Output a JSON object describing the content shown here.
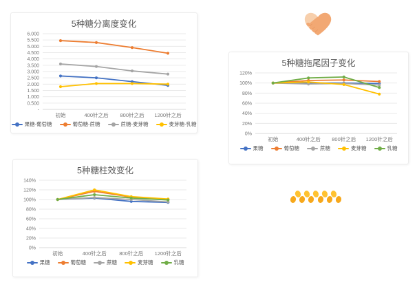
{
  "page": {
    "background": "#FFFFFF"
  },
  "colors": {
    "blue": "#4472C4",
    "orange": "#ED7D31",
    "gray": "#A5A5A5",
    "yellow": "#FFC000",
    "green": "#70AD47",
    "title_text": "#595959",
    "axis_text": "#737373",
    "gridline": "#EAEAEA",
    "axis_line": "#D9D9D9",
    "card_border": "#ECECEC"
  },
  "decorations": {
    "heart_hands": {
      "label": "handshake-heart",
      "light_hand": "#F7CFAC",
      "dark_hand": "#F2A873",
      "outline": "#E8965F"
    },
    "honeycomb": {
      "label": "honey-dots",
      "dot_count": 11,
      "dot_colors": [
        "#F7A81B",
        "#FFC230"
      ]
    }
  },
  "chart_data": [
    {
      "type": "line",
      "title": "5种糖分离度变化",
      "categories": [
        "初始",
        "400针之后",
        "800针之后",
        "1200针之后"
      ],
      "y_ticks": [
        "6.000",
        "5.500",
        "5.000",
        "4.500",
        "4.000",
        "3.500",
        "3.000",
        "2.500",
        "2.000",
        "1.500",
        "1.000",
        "0.500",
        "-"
      ],
      "ylim": [
        0,
        6
      ],
      "grid": true,
      "legend_position": "bottom",
      "series": [
        {
          "name": "果糖-葡萄糖",
          "color": "blue",
          "values": [
            2.65,
            2.5,
            2.2,
            1.9
          ]
        },
        {
          "name": "葡萄糖-蔗糖",
          "color": "orange",
          "values": [
            5.45,
            5.3,
            4.9,
            4.45
          ]
        },
        {
          "name": "蔗糖-麦芽糖",
          "color": "gray",
          "values": [
            3.6,
            3.4,
            3.05,
            2.8
          ]
        },
        {
          "name": "麦芽糖-乳糖",
          "color": "yellow",
          "values": [
            1.8,
            2.05,
            2.05,
            2.0
          ]
        }
      ]
    },
    {
      "type": "line",
      "title": "5种糖拖尾因子变化",
      "categories": [
        "初始",
        "400针之后",
        "800针之后",
        "1200针之后"
      ],
      "y_ticks": [
        "120%",
        "100%",
        "80%",
        "60%",
        "40%",
        "20%",
        "0%"
      ],
      "ylim": [
        0,
        120
      ],
      "grid": true,
      "legend_position": "bottom",
      "series": [
        {
          "name": "果糖",
          "color": "blue",
          "values": [
            100,
            100,
            100,
            99
          ]
        },
        {
          "name": "葡萄糖",
          "color": "orange",
          "values": [
            100,
            105,
            106,
            103
          ]
        },
        {
          "name": "蔗糖",
          "color": "gray",
          "values": [
            100,
            98,
            99,
            96
          ]
        },
        {
          "name": "麦芽糖",
          "color": "yellow",
          "values": [
            100,
            102,
            97,
            78
          ]
        },
        {
          "name": "乳糖",
          "color": "green",
          "values": [
            100,
            110,
            112,
            91
          ]
        }
      ]
    },
    {
      "type": "line",
      "title": "5种糖柱效变化",
      "categories": [
        "初始",
        "400针之后",
        "800针之后",
        "1200针之后"
      ],
      "y_ticks": [
        "140%",
        "120%",
        "100%",
        "80%",
        "60%",
        "40%",
        "20%",
        "0%"
      ],
      "ylim": [
        0,
        140
      ],
      "grid": true,
      "legend_position": "bottom",
      "series": [
        {
          "name": "果糖",
          "color": "blue",
          "values": [
            100,
            103,
            96,
            94
          ]
        },
        {
          "name": "葡萄糖",
          "color": "orange",
          "values": [
            100,
            117,
            105,
            100
          ]
        },
        {
          "name": "蔗糖",
          "color": "gray",
          "values": [
            100,
            104,
            100,
            95
          ]
        },
        {
          "name": "麦芽糖",
          "color": "yellow",
          "values": [
            100,
            120,
            106,
            101
          ]
        },
        {
          "name": "乳糖",
          "color": "green",
          "values": [
            100,
            110,
            103,
            99
          ]
        }
      ]
    }
  ]
}
